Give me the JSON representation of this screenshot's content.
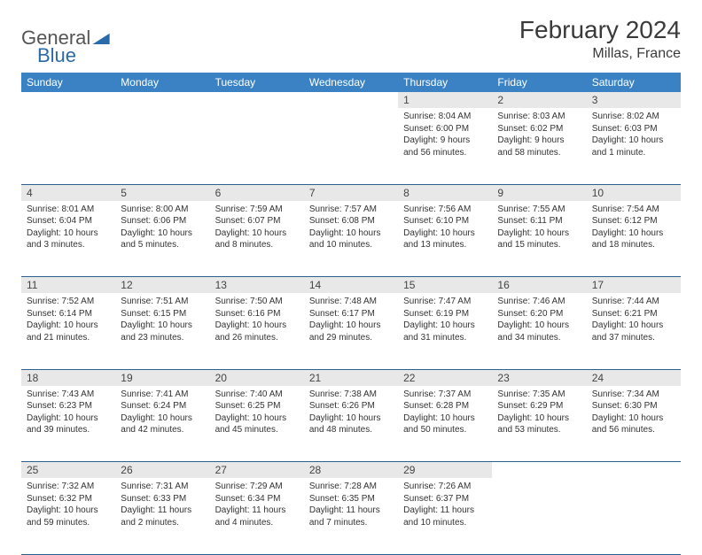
{
  "brand": {
    "part1": "General",
    "part2": "Blue"
  },
  "title": "February 2024",
  "location": "Millas, France",
  "colors": {
    "header_bg": "#3b82c4",
    "header_text": "#ffffff",
    "daynum_bg": "#e8e8e8",
    "border": "#2d5f8f",
    "logo_gray": "#555555",
    "logo_blue": "#2b6aa8"
  },
  "day_headers": [
    "Sunday",
    "Monday",
    "Tuesday",
    "Wednesday",
    "Thursday",
    "Friday",
    "Saturday"
  ],
  "weeks": [
    {
      "nums": [
        "",
        "",
        "",
        "",
        "1",
        "2",
        "3"
      ],
      "cells": [
        "",
        "",
        "",
        "",
        "Sunrise: 8:04 AM\nSunset: 6:00 PM\nDaylight: 9 hours and 56 minutes.",
        "Sunrise: 8:03 AM\nSunset: 6:02 PM\nDaylight: 9 hours and 58 minutes.",
        "Sunrise: 8:02 AM\nSunset: 6:03 PM\nDaylight: 10 hours and 1 minute."
      ]
    },
    {
      "nums": [
        "4",
        "5",
        "6",
        "7",
        "8",
        "9",
        "10"
      ],
      "cells": [
        "Sunrise: 8:01 AM\nSunset: 6:04 PM\nDaylight: 10 hours and 3 minutes.",
        "Sunrise: 8:00 AM\nSunset: 6:06 PM\nDaylight: 10 hours and 5 minutes.",
        "Sunrise: 7:59 AM\nSunset: 6:07 PM\nDaylight: 10 hours and 8 minutes.",
        "Sunrise: 7:57 AM\nSunset: 6:08 PM\nDaylight: 10 hours and 10 minutes.",
        "Sunrise: 7:56 AM\nSunset: 6:10 PM\nDaylight: 10 hours and 13 minutes.",
        "Sunrise: 7:55 AM\nSunset: 6:11 PM\nDaylight: 10 hours and 15 minutes.",
        "Sunrise: 7:54 AM\nSunset: 6:12 PM\nDaylight: 10 hours and 18 minutes."
      ]
    },
    {
      "nums": [
        "11",
        "12",
        "13",
        "14",
        "15",
        "16",
        "17"
      ],
      "cells": [
        "Sunrise: 7:52 AM\nSunset: 6:14 PM\nDaylight: 10 hours and 21 minutes.",
        "Sunrise: 7:51 AM\nSunset: 6:15 PM\nDaylight: 10 hours and 23 minutes.",
        "Sunrise: 7:50 AM\nSunset: 6:16 PM\nDaylight: 10 hours and 26 minutes.",
        "Sunrise: 7:48 AM\nSunset: 6:17 PM\nDaylight: 10 hours and 29 minutes.",
        "Sunrise: 7:47 AM\nSunset: 6:19 PM\nDaylight: 10 hours and 31 minutes.",
        "Sunrise: 7:46 AM\nSunset: 6:20 PM\nDaylight: 10 hours and 34 minutes.",
        "Sunrise: 7:44 AM\nSunset: 6:21 PM\nDaylight: 10 hours and 37 minutes."
      ]
    },
    {
      "nums": [
        "18",
        "19",
        "20",
        "21",
        "22",
        "23",
        "24"
      ],
      "cells": [
        "Sunrise: 7:43 AM\nSunset: 6:23 PM\nDaylight: 10 hours and 39 minutes.",
        "Sunrise: 7:41 AM\nSunset: 6:24 PM\nDaylight: 10 hours and 42 minutes.",
        "Sunrise: 7:40 AM\nSunset: 6:25 PM\nDaylight: 10 hours and 45 minutes.",
        "Sunrise: 7:38 AM\nSunset: 6:26 PM\nDaylight: 10 hours and 48 minutes.",
        "Sunrise: 7:37 AM\nSunset: 6:28 PM\nDaylight: 10 hours and 50 minutes.",
        "Sunrise: 7:35 AM\nSunset: 6:29 PM\nDaylight: 10 hours and 53 minutes.",
        "Sunrise: 7:34 AM\nSunset: 6:30 PM\nDaylight: 10 hours and 56 minutes."
      ]
    },
    {
      "nums": [
        "25",
        "26",
        "27",
        "28",
        "29",
        "",
        ""
      ],
      "cells": [
        "Sunrise: 7:32 AM\nSunset: 6:32 PM\nDaylight: 10 hours and 59 minutes.",
        "Sunrise: 7:31 AM\nSunset: 6:33 PM\nDaylight: 11 hours and 2 minutes.",
        "Sunrise: 7:29 AM\nSunset: 6:34 PM\nDaylight: 11 hours and 4 minutes.",
        "Sunrise: 7:28 AM\nSunset: 6:35 PM\nDaylight: 11 hours and 7 minutes.",
        "Sunrise: 7:26 AM\nSunset: 6:37 PM\nDaylight: 11 hours and 10 minutes.",
        "",
        ""
      ]
    }
  ]
}
